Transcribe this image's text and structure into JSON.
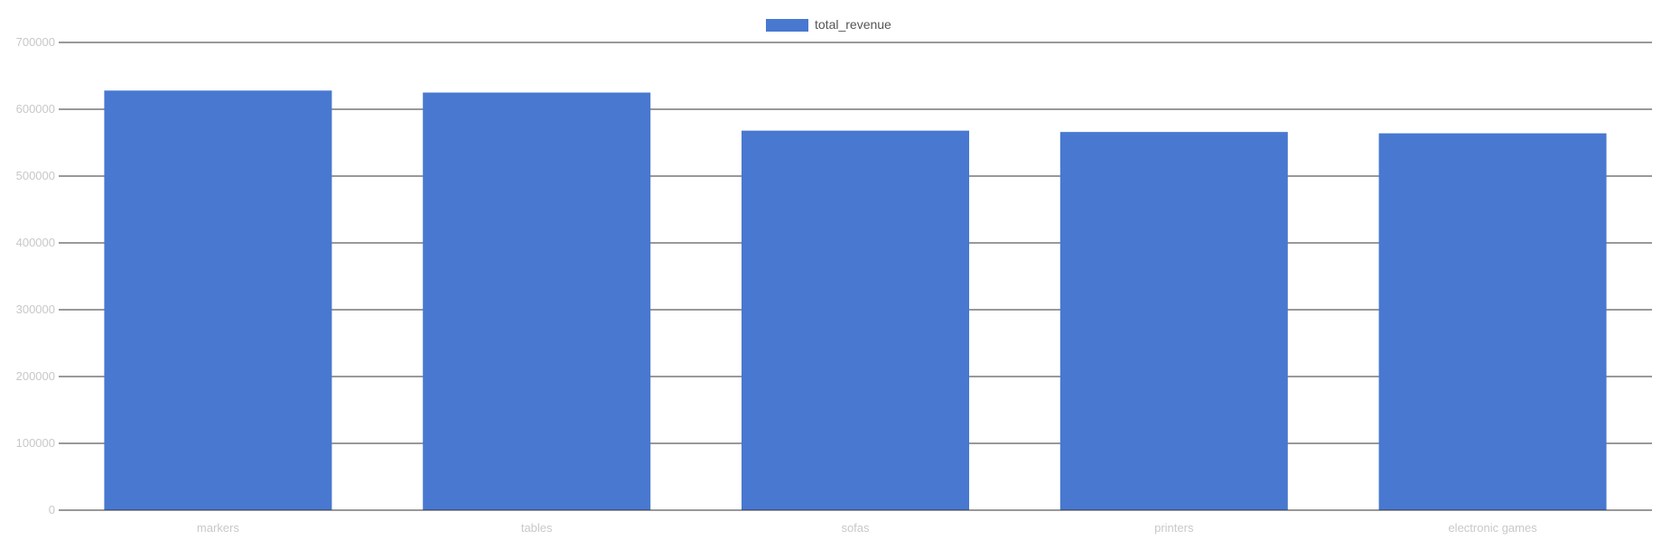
{
  "chart_data": {
    "type": "bar",
    "categories": [
      "markers",
      "tables",
      "sofas",
      "printers",
      "electronic games"
    ],
    "series": [
      {
        "name": "total_revenue",
        "values": [
          628000,
          625000,
          568000,
          566000,
          564000
        ]
      }
    ],
    "title": "",
    "xlabel": "",
    "ylabel": "",
    "ylim": [
      0,
      700000
    ],
    "yticks": [
      "0",
      "100000",
      "200000",
      "300000",
      "400000",
      "500000",
      "600000",
      "700000"
    ],
    "grid": true,
    "legend": "top-center",
    "colors": {
      "bar": "#4878d0",
      "gridline": "#333333",
      "tick_label": "#c8c8c8",
      "legend_text": "#555555"
    }
  }
}
